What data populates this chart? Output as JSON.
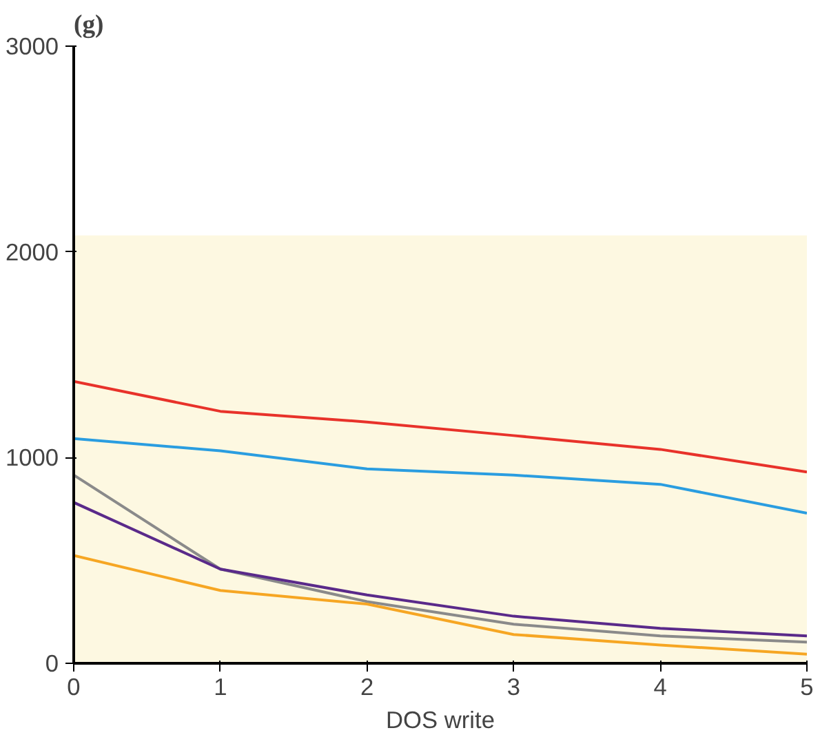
{
  "chart_data": {
    "type": "line",
    "title": "(g)",
    "xlabel": "DOS write",
    "x": [
      0,
      1,
      2,
      3,
      4,
      5
    ],
    "series": [
      {
        "color": "#e8322a",
        "values": [
          1370,
          1225,
          1173,
          1107,
          1040,
          930
        ]
      },
      {
        "color": "#2a9de0",
        "values": [
          1092,
          1033,
          945,
          915,
          870,
          730
        ]
      },
      {
        "color": "#8a8a8a",
        "values": [
          915,
          458,
          300,
          190,
          133,
          103
        ]
      },
      {
        "color": "#5a2a8a",
        "values": [
          782,
          458,
          332,
          229,
          170,
          133
        ]
      },
      {
        "color": "#f6a623",
        "values": [
          524,
          354,
          288,
          140,
          89,
          44
        ]
      }
    ],
    "xlim": [
      0,
      5
    ],
    "ylim": [
      0,
      3000
    ],
    "xticks": [
      0,
      1,
      2,
      3,
      4,
      5
    ],
    "yticks": [
      0,
      1000,
      2000,
      3000
    ],
    "bands": [
      {
        "axis": "y",
        "from": 0,
        "to": 2080,
        "color": "#fdf8e1"
      }
    ],
    "grid": false,
    "marker": "none",
    "line_style": "solid"
  }
}
